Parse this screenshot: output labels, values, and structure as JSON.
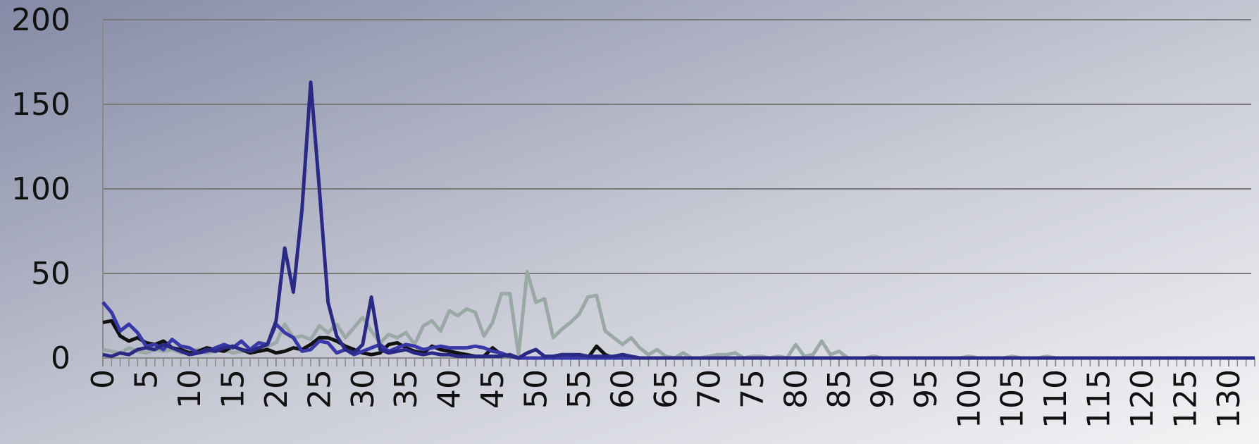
{
  "chart_data": {
    "type": "line",
    "x": [
      0,
      1,
      2,
      3,
      4,
      5,
      6,
      7,
      8,
      9,
      10,
      11,
      12,
      13,
      14,
      15,
      16,
      17,
      18,
      19,
      20,
      21,
      22,
      23,
      24,
      25,
      26,
      27,
      28,
      29,
      30,
      31,
      32,
      33,
      34,
      35,
      36,
      37,
      38,
      39,
      40,
      41,
      42,
      43,
      44,
      45,
      46,
      47,
      48,
      49,
      50,
      51,
      52,
      53,
      54,
      55,
      56,
      57,
      58,
      59,
      60,
      61,
      62,
      63,
      64,
      65,
      66,
      67,
      68,
      69,
      70,
      71,
      72,
      73,
      74,
      75,
      76,
      77,
      78,
      79,
      80,
      81,
      82,
      83,
      84,
      85,
      86,
      87,
      88,
      89,
      90,
      91,
      92,
      93,
      94,
      95,
      96,
      97,
      98,
      99,
      100,
      101,
      102,
      103,
      104,
      105,
      106,
      107,
      108,
      109,
      110,
      111,
      112,
      113,
      114,
      115,
      116,
      117,
      118,
      119,
      120,
      121,
      122,
      123,
      124,
      125,
      126,
      127,
      128,
      129,
      130,
      131,
      132,
      133
    ],
    "series": [
      {
        "color": "#9aa9a5",
        "values": [
          5,
          4,
          3,
          6,
          4,
          3,
          5,
          4,
          5,
          3,
          4,
          5,
          3,
          4,
          5,
          3,
          4,
          5,
          6,
          7,
          9,
          20,
          12,
          13,
          11,
          19,
          15,
          20,
          12,
          18,
          24,
          16,
          9,
          14,
          12,
          15,
          8,
          19,
          22,
          16,
          28,
          25,
          29,
          27,
          13,
          21,
          38,
          38,
          2,
          51,
          33,
          35,
          12,
          17,
          21,
          26,
          36,
          37,
          16,
          12,
          8,
          12,
          6,
          2,
          5,
          1,
          0,
          3,
          0,
          0,
          1,
          2,
          2,
          3,
          0,
          1,
          1,
          0,
          1,
          0,
          8,
          1,
          2,
          10,
          2,
          4,
          0,
          0,
          0,
          1,
          0,
          0,
          0,
          0,
          0,
          0,
          0,
          0,
          0,
          0,
          1,
          0,
          0,
          0,
          0,
          1,
          0,
          0,
          0,
          1,
          0,
          0,
          0,
          0,
          0,
          0,
          0,
          0,
          0,
          0,
          0,
          0,
          0,
          0,
          0,
          0,
          0,
          0,
          0,
          0,
          0,
          0,
          0,
          0
        ]
      },
      {
        "color": "#111111",
        "values": [
          21,
          22,
          13,
          10,
          12,
          9,
          8,
          10,
          6,
          5,
          3,
          4,
          6,
          5,
          4,
          7,
          5,
          3,
          4,
          5,
          3,
          4,
          6,
          5,
          8,
          12,
          12,
          10,
          7,
          5,
          3,
          2,
          3,
          8,
          9,
          6,
          4,
          3,
          7,
          5,
          4,
          3,
          2,
          1,
          1,
          6,
          2,
          1,
          0,
          0,
          0,
          0,
          0,
          0,
          0,
          0,
          0,
          7,
          2,
          0,
          0,
          0,
          0,
          0,
          0,
          0,
          0,
          0,
          0,
          0,
          0,
          0,
          0,
          0,
          0,
          0,
          0,
          0,
          0,
          0,
          0,
          0,
          0,
          0,
          0,
          0,
          0,
          0,
          0,
          0,
          0,
          0,
          0,
          0,
          0,
          0,
          0,
          0,
          0,
          0,
          0,
          0,
          0,
          0,
          0,
          0,
          0,
          0,
          0,
          0,
          0,
          0,
          0,
          0,
          0,
          0,
          0,
          0,
          0,
          0,
          0,
          0,
          0,
          0,
          0,
          0,
          0,
          0,
          0,
          0,
          0,
          0,
          0,
          0
        ]
      },
      {
        "color": "#3838a8",
        "values": [
          33,
          27,
          16,
          20,
          15,
          7,
          8,
          5,
          11,
          7,
          6,
          3,
          4,
          6,
          8,
          6,
          10,
          5,
          9,
          8,
          20,
          15,
          12,
          4,
          5,
          10,
          9,
          3,
          5,
          2,
          4,
          6,
          8,
          4,
          6,
          8,
          7,
          5,
          6,
          7,
          6,
          6,
          6,
          7,
          6,
          4,
          3,
          1,
          0,
          0,
          0,
          0,
          0,
          0,
          0,
          0,
          0,
          0,
          0,
          0,
          0,
          0,
          0,
          0,
          0,
          0,
          0,
          0,
          0,
          0,
          0,
          0,
          0,
          0,
          0,
          0,
          0,
          0,
          0,
          0,
          0,
          0,
          0,
          0,
          0,
          0,
          0,
          0,
          0,
          0,
          0,
          0,
          0,
          0,
          0,
          0,
          0,
          0,
          0,
          0,
          0,
          0,
          0,
          0,
          0,
          0,
          0,
          0,
          0,
          0,
          0,
          0,
          0,
          0,
          0,
          0,
          0,
          0,
          0,
          0,
          0,
          0,
          0,
          0,
          0,
          0,
          0,
          0,
          0,
          0,
          0,
          0,
          0,
          0
        ]
      },
      {
        "color": "#2a2a85",
        "values": [
          2,
          1,
          3,
          2,
          5,
          6,
          5,
          8,
          6,
          4,
          2,
          3,
          5,
          4,
          6,
          7,
          5,
          4,
          6,
          8,
          22,
          65,
          39,
          88,
          163,
          100,
          33,
          13,
          5,
          3,
          8,
          36,
          5,
          3,
          4,
          5,
          3,
          2,
          3,
          2,
          2,
          1,
          1,
          1,
          1,
          1,
          1,
          2,
          0,
          3,
          5,
          1,
          1,
          2,
          2,
          2,
          1,
          1,
          1,
          1,
          2,
          1,
          0,
          0,
          0,
          0,
          0,
          0,
          0,
          0,
          0,
          0,
          0,
          0,
          0,
          0,
          0,
          0,
          0,
          0,
          0,
          0,
          0,
          0,
          0,
          0,
          0,
          0,
          0,
          0,
          0,
          0,
          0,
          0,
          0,
          0,
          0,
          0,
          0,
          0,
          0,
          0,
          0,
          0,
          0,
          0,
          0,
          0,
          0,
          0,
          0,
          0,
          0,
          0,
          0,
          0,
          0,
          0,
          0,
          0,
          0,
          0,
          0,
          0,
          0,
          0,
          0,
          0,
          0,
          0,
          0,
          0,
          0,
          0
        ]
      }
    ],
    "xlim": [
      0,
      132.6
    ],
    "xticks": [
      0,
      5,
      10,
      15,
      20,
      25,
      30,
      35,
      40,
      45,
      50,
      55,
      60,
      65,
      70,
      75,
      80,
      85,
      90,
      95,
      100,
      105,
      110,
      115,
      120,
      125,
      130
    ],
    "ylim": [
      0,
      200
    ],
    "yticks": [
      0,
      50,
      100,
      150,
      200
    ],
    "grid": true
  }
}
